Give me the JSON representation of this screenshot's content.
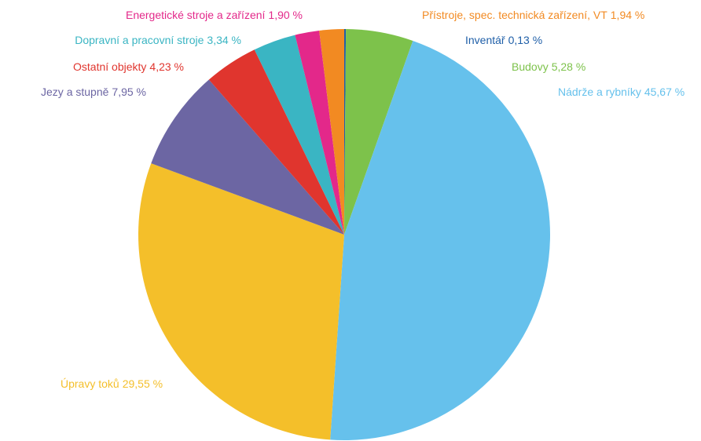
{
  "chart_data": {
    "type": "pie",
    "categories": [
      "Inventář",
      "Budovy",
      "Nádrže a rybníky",
      "Úpravy toků",
      "Jezy a stupně",
      "Ostatní objekty",
      "Dopravní a pracovní stroje",
      "Energetické stroje a zařízení",
      "Přístroje, spec. technická zařízení, VT"
    ],
    "values": [
      0.13,
      5.28,
      45.67,
      29.55,
      7.95,
      4.23,
      3.34,
      1.9,
      1.94
    ],
    "value_labels": [
      "0,13 %",
      "5,28 %",
      "45,67 %",
      "29,55 %",
      "7,95 %",
      "4,23 %",
      "3,34 %",
      "1,90 %",
      "1,94 %"
    ],
    "colors": [
      "#1f5fa8",
      "#7dc24b",
      "#66c1ec",
      "#f4bf2a",
      "#6c66a3",
      "#e0352e",
      "#3ab5c3",
      "#e3288a",
      "#f28a22"
    ]
  }
}
